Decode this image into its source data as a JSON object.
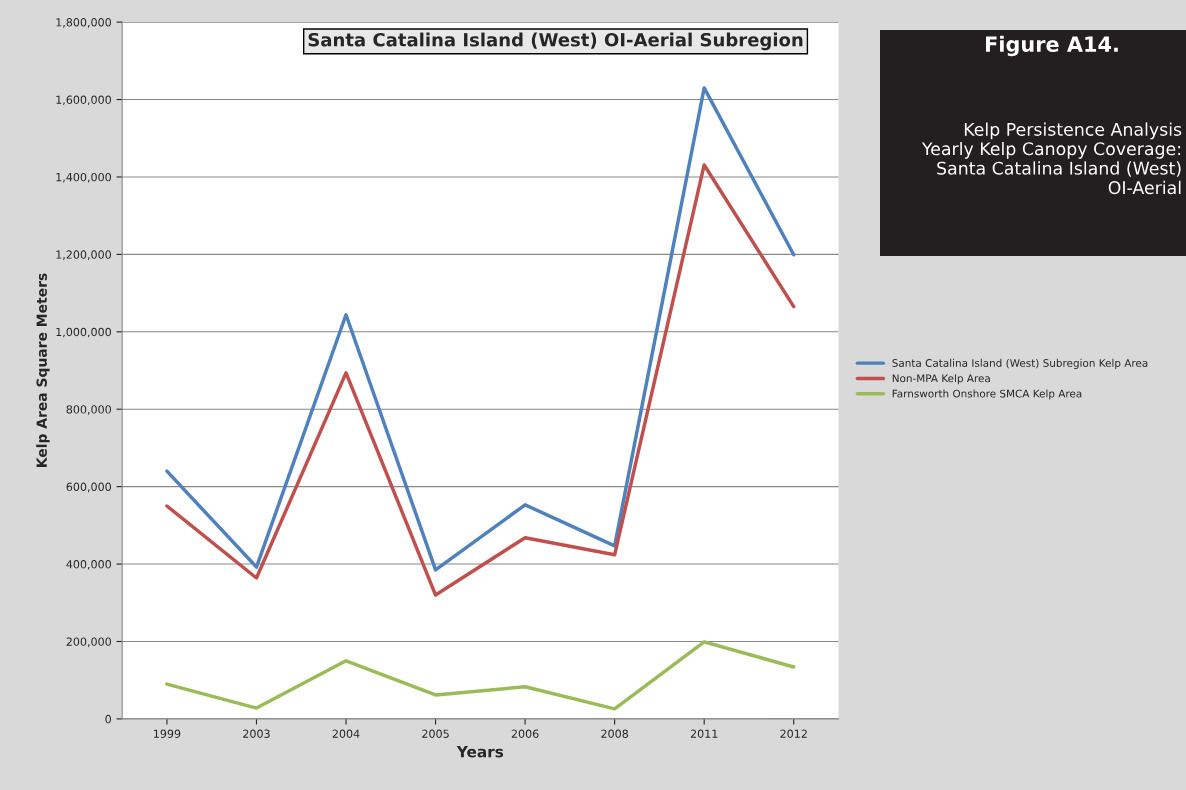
{
  "chart_data": {
    "type": "line",
    "title": "Santa Catalina Island (West) OI-Aerial Subregion",
    "xlabel": "Years",
    "ylabel": "Kelp Area Square Meters",
    "categories": [
      "1999",
      "2003",
      "2004",
      "2005",
      "2006",
      "2008",
      "2011",
      "2012"
    ],
    "series": [
      {
        "name": "Santa Catalina Island (West) Subregion Kelp Area",
        "color": "#4f81bd",
        "values": [
          640000,
          392000,
          1044000,
          385000,
          553000,
          447000,
          1630000,
          1199000
        ]
      },
      {
        "name": "Non-MPA Kelp Area",
        "color": "#c0504d",
        "values": [
          550000,
          364000,
          894000,
          320000,
          468000,
          424000,
          1431000,
          1065000
        ]
      },
      {
        "name": "Farnsworth Onshore SMCA Kelp Area",
        "color": "#9bbb59",
        "values": [
          90000,
          28000,
          150000,
          62000,
          83000,
          26000,
          199000,
          134000
        ]
      }
    ],
    "ylim": [
      0,
      1800000
    ],
    "yticks": [
      {
        "value": 0,
        "label": "0"
      },
      {
        "value": 200000,
        "label": "200,000"
      },
      {
        "value": 400000,
        "label": "400,000"
      },
      {
        "value": 600000,
        "label": "600,000"
      },
      {
        "value": 800000,
        "label": "800,000"
      },
      {
        "value": 1000000,
        "label": "1,000,000"
      },
      {
        "value": 1200000,
        "label": "1,200,000"
      },
      {
        "value": 1400000,
        "label": "1,400,000"
      },
      {
        "value": 1600000,
        "label": "1,600,000"
      },
      {
        "value": 1800000,
        "label": "1,800,000"
      }
    ],
    "grid": "y",
    "legend": "right",
    "marker": "none",
    "line_style": "solid",
    "annotations": [
      "Figure A14.",
      "Kelp Persistence Analysis Yearly Kelp Canopy Coverage: Santa Catalina Island (West) OI-Aerial"
    ]
  }
}
